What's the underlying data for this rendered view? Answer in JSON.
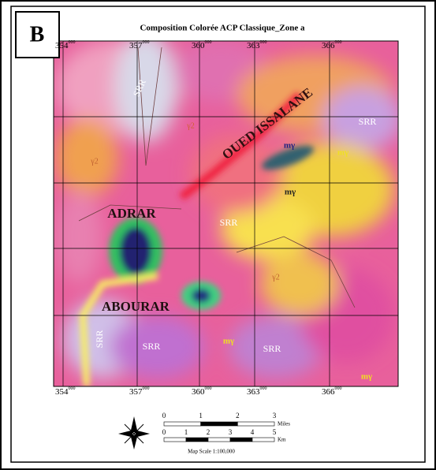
{
  "panel_label": "B",
  "title": "Composition Colorée ACP Classique_Zone a",
  "map": {
    "top_ticks": [
      {
        "main": "354",
        "sup": "000"
      },
      {
        "main": "357",
        "sup": "000"
      },
      {
        "main": "360",
        "sup": "000"
      },
      {
        "main": "363",
        "sup": "000"
      },
      {
        "main": "366",
        "sup": "000"
      }
    ],
    "bottom_ticks": [
      {
        "main": "354",
        "sup": "000"
      },
      {
        "main": "357",
        "sup": "000"
      },
      {
        "main": "360",
        "sup": "000"
      },
      {
        "main": "363",
        "sup": "000"
      },
      {
        "main": "366",
        "sup": "000"
      }
    ],
    "labels": [
      "SRR",
      "SRR",
      "OUED ISSALANE",
      "mγ",
      "mγ",
      "mγ",
      "γ2",
      "γ2",
      "ADRAR",
      "SRR",
      "γ2",
      "ABOURAR",
      "SRR",
      "SRR",
      "mγ",
      "SRR",
      "mγ"
    ]
  },
  "scale": {
    "miles": [
      "0",
      "1",
      "2",
      "3"
    ],
    "miles_unit": "Miles",
    "km": [
      "0",
      "1",
      "2",
      "3",
      "4",
      "5"
    ],
    "km_unit": "Km",
    "caption": "Map Scale 1:100,000"
  }
}
